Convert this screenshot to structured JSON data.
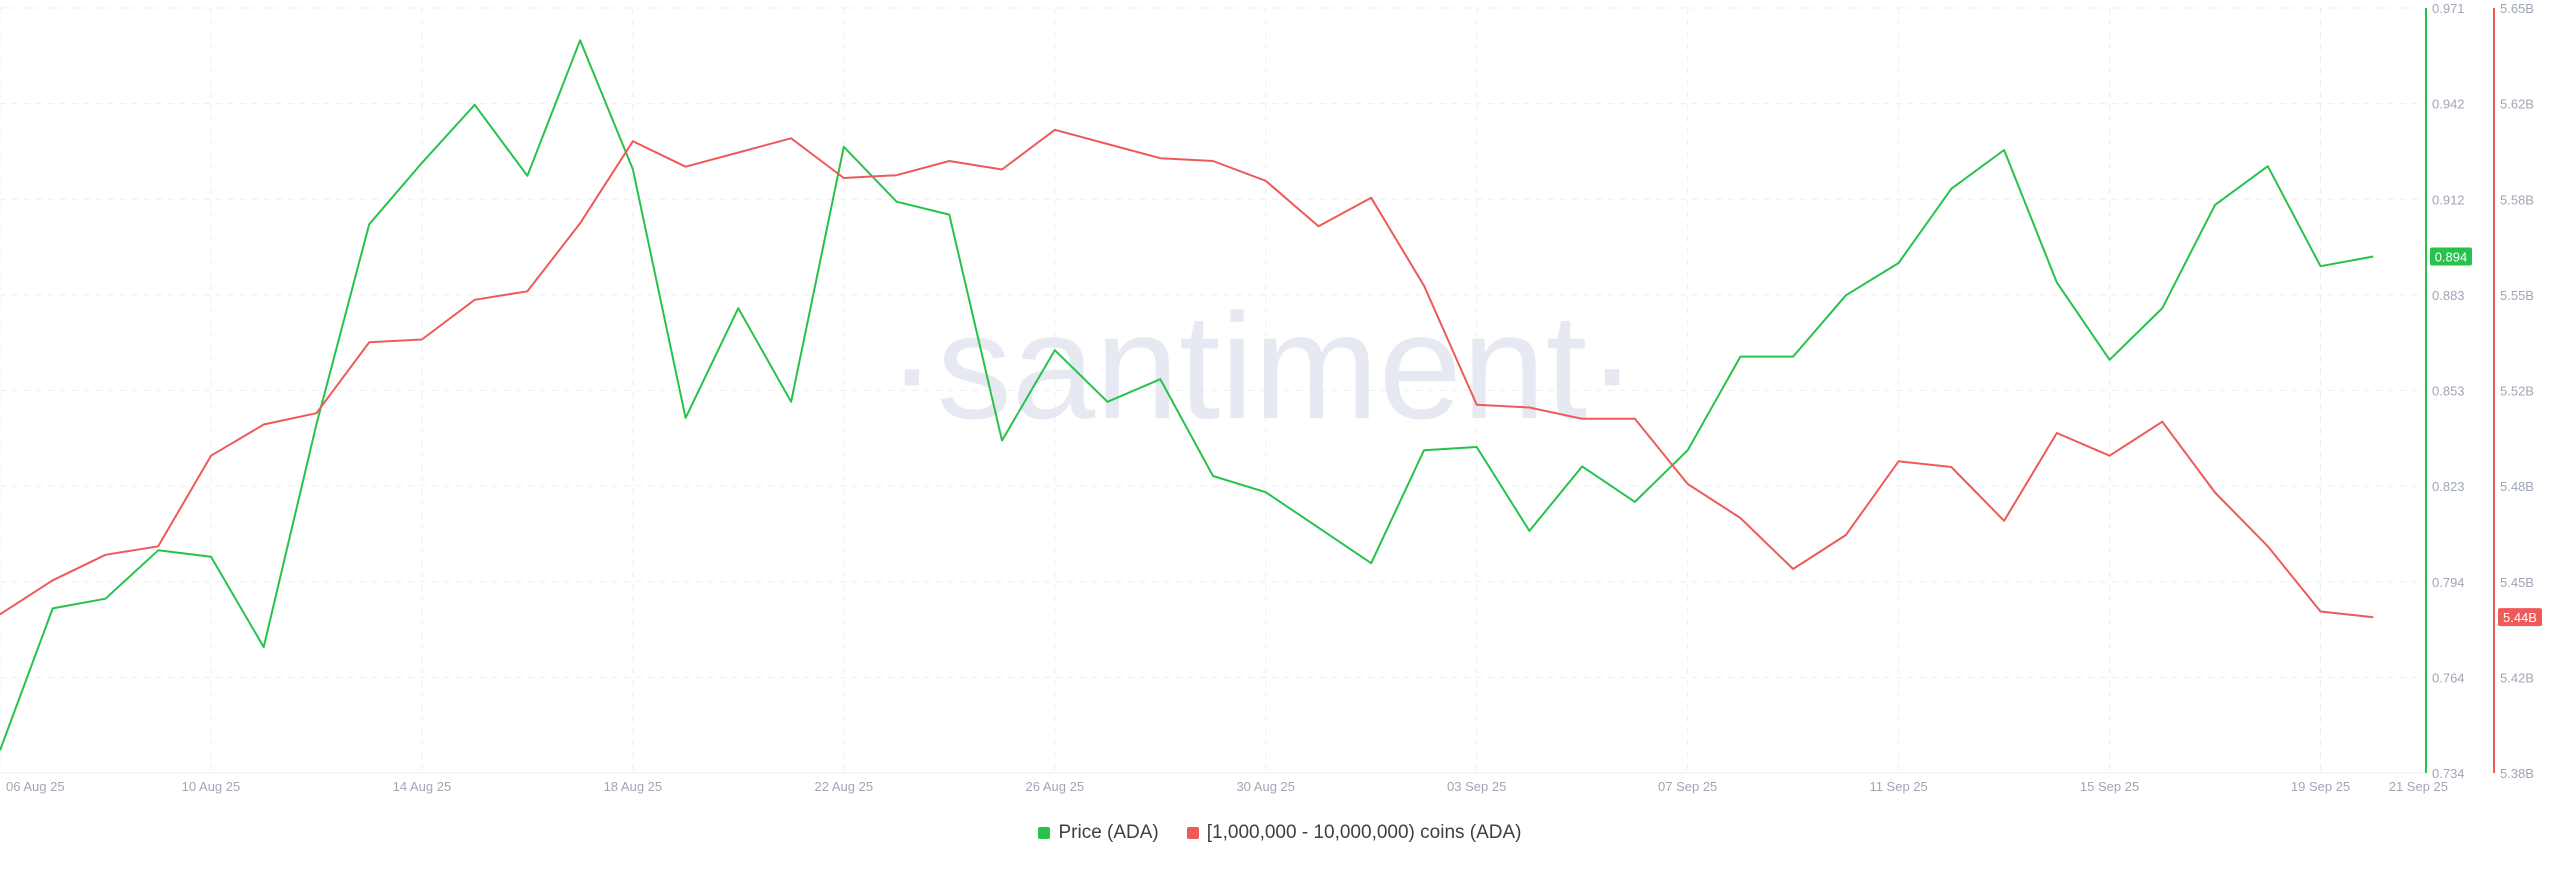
{
  "colors": {
    "price": "#27c24c",
    "holders": "#ee5a5a",
    "grid": "#eceef3",
    "watermark": "#e3e6f0"
  },
  "watermark_text": "·santiment·",
  "chart_data": {
    "type": "line",
    "x_tick_labels": [
      "06 Aug 25",
      "10 Aug 25",
      "14 Aug 25",
      "18 Aug 25",
      "22 Aug 25",
      "26 Aug 25",
      "30 Aug 25",
      "03 Sep 25",
      "07 Sep 25",
      "11 Sep 25",
      "15 Sep 25",
      "19 Sep 25",
      "21 Sep 25"
    ],
    "x_range": [
      "2025-08-06",
      "2025-09-21"
    ],
    "y_left": {
      "ticks": [
        "0.971",
        "0.942",
        "0.912",
        "0.883",
        "0.853",
        "0.823",
        "0.794",
        "0.764",
        "0.734"
      ],
      "range": [
        0.734,
        0.971
      ],
      "current_value_label": "0.894"
    },
    "y_right": {
      "ticks": [
        "5.65B",
        "5.62B",
        "5.58B",
        "5.55B",
        "5.52B",
        "5.48B",
        "5.45B",
        "5.42B",
        "5.38B"
      ],
      "range": [
        5.38,
        5.65
      ],
      "unit": "B",
      "current_value_label": "5.44B"
    },
    "legend_position": "bottom-center",
    "grid": true,
    "series": [
      {
        "name": "Price (ADA)",
        "axis": "left",
        "points": [
          [
            "2025-08-06",
            0.741
          ],
          [
            "2025-08-07",
            0.785
          ],
          [
            "2025-08-08",
            0.788
          ],
          [
            "2025-08-09",
            0.803
          ],
          [
            "2025-08-10",
            0.801
          ],
          [
            "2025-08-11",
            0.773
          ],
          [
            "2025-08-12",
            0.842
          ],
          [
            "2025-08-13",
            0.904
          ],
          [
            "2025-08-14",
            0.923
          ],
          [
            "2025-08-15",
            0.941
          ],
          [
            "2025-08-16",
            0.919
          ],
          [
            "2025-08-17",
            0.961
          ],
          [
            "2025-08-18",
            0.921
          ],
          [
            "2025-08-19",
            0.844
          ],
          [
            "2025-08-20",
            0.878
          ],
          [
            "2025-08-21",
            0.849
          ],
          [
            "2025-08-22",
            0.928
          ],
          [
            "2025-08-23",
            0.911
          ],
          [
            "2025-08-24",
            0.907
          ],
          [
            "2025-08-25",
            0.837
          ],
          [
            "2025-08-26",
            0.865
          ],
          [
            "2025-08-27",
            0.849
          ],
          [
            "2025-08-28",
            0.856
          ],
          [
            "2025-08-29",
            0.826
          ],
          [
            "2025-08-30",
            0.821
          ],
          [
            "2025-08-31",
            0.81
          ],
          [
            "2025-09-01",
            0.799
          ],
          [
            "2025-09-02",
            0.834
          ],
          [
            "2025-09-03",
            0.835
          ],
          [
            "2025-09-04",
            0.809
          ],
          [
            "2025-09-05",
            0.829
          ],
          [
            "2025-09-06",
            0.818
          ],
          [
            "2025-09-07",
            0.834
          ],
          [
            "2025-09-08",
            0.863
          ],
          [
            "2025-09-09",
            0.863
          ],
          [
            "2025-09-10",
            0.882
          ],
          [
            "2025-09-11",
            0.892
          ],
          [
            "2025-09-12",
            0.915
          ],
          [
            "2025-09-13",
            0.927
          ],
          [
            "2025-09-14",
            0.886
          ],
          [
            "2025-09-15",
            0.862
          ],
          [
            "2025-09-16",
            0.878
          ],
          [
            "2025-09-17",
            0.91
          ],
          [
            "2025-09-18",
            0.922
          ],
          [
            "2025-09-19",
            0.891
          ],
          [
            "2025-09-20",
            0.894
          ]
        ]
      },
      {
        "name": "[1,000,000 - 10,000,000) coins (ADA)",
        "axis": "right",
        "points": [
          [
            "2025-08-05",
            5.458
          ],
          [
            "2025-08-06",
            5.436
          ],
          [
            "2025-08-07",
            5.448
          ],
          [
            "2025-08-08",
            5.457
          ],
          [
            "2025-08-09",
            5.46
          ],
          [
            "2025-08-10",
            5.492
          ],
          [
            "2025-08-11",
            5.503
          ],
          [
            "2025-08-12",
            5.507
          ],
          [
            "2025-08-13",
            5.532
          ],
          [
            "2025-08-14",
            5.533
          ],
          [
            "2025-08-15",
            5.547
          ],
          [
            "2025-08-16",
            5.55
          ],
          [
            "2025-08-17",
            5.574
          ],
          [
            "2025-08-18",
            5.603
          ],
          [
            "2025-08-19",
            5.594
          ],
          [
            "2025-08-20",
            5.599
          ],
          [
            "2025-08-21",
            5.604
          ],
          [
            "2025-08-22",
            5.59
          ],
          [
            "2025-08-23",
            5.591
          ],
          [
            "2025-08-24",
            5.596
          ],
          [
            "2025-08-25",
            5.593
          ],
          [
            "2025-08-26",
            5.607
          ],
          [
            "2025-08-27",
            5.602
          ],
          [
            "2025-08-28",
            5.597
          ],
          [
            "2025-08-29",
            5.596
          ],
          [
            "2025-08-30",
            5.589
          ],
          [
            "2025-08-31",
            5.573
          ],
          [
            "2025-09-01",
            5.583
          ],
          [
            "2025-09-02",
            5.552
          ],
          [
            "2025-09-03",
            5.51
          ],
          [
            "2025-09-04",
            5.509
          ],
          [
            "2025-09-05",
            5.505
          ],
          [
            "2025-09-06",
            5.505
          ],
          [
            "2025-09-07",
            5.482
          ],
          [
            "2025-09-08",
            5.47
          ],
          [
            "2025-09-09",
            5.452
          ],
          [
            "2025-09-10",
            5.464
          ],
          [
            "2025-09-11",
            5.49
          ],
          [
            "2025-09-12",
            5.488
          ],
          [
            "2025-09-13",
            5.469
          ],
          [
            "2025-09-14",
            5.5
          ],
          [
            "2025-09-15",
            5.492
          ],
          [
            "2025-09-16",
            5.504
          ],
          [
            "2025-09-17",
            5.479
          ],
          [
            "2025-09-18",
            5.46
          ],
          [
            "2025-09-19",
            5.437
          ],
          [
            "2025-09-20",
            5.435
          ]
        ]
      }
    ]
  }
}
